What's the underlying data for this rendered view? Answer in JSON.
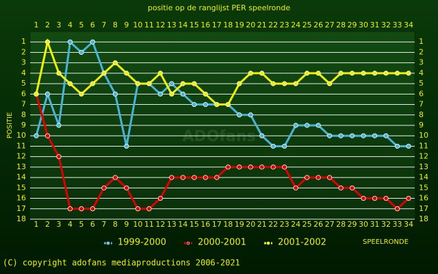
{
  "chart_data": {
    "type": "line",
    "title": "positie op de ranglijst PER speelronde",
    "y_label": "POSITIE",
    "x_label": "SPEELRONDE",
    "watermark": "ADOfans",
    "footer": "(C) copyright adofans mediaproductions 2006-2021",
    "x": [
      1,
      2,
      3,
      4,
      5,
      6,
      7,
      8,
      9,
      10,
      11,
      12,
      13,
      14,
      15,
      16,
      17,
      18,
      19,
      20,
      21,
      22,
      23,
      24,
      25,
      26,
      27,
      28,
      29,
      30,
      31,
      32,
      33,
      34
    ],
    "xlim": [
      1,
      34
    ],
    "ylim": [
      18,
      0
    ],
    "yticks": [
      1,
      2,
      3,
      4,
      5,
      6,
      7,
      8,
      9,
      10,
      11,
      12,
      13,
      14,
      15,
      16,
      17,
      18
    ],
    "grid": true,
    "series": [
      {
        "name": "1999-2000",
        "color": "#4ab4d8",
        "values": [
          10,
          6,
          9,
          1,
          2,
          1,
          4,
          6,
          11,
          5,
          5,
          6,
          5,
          6,
          7,
          7,
          7,
          7,
          8,
          8,
          10,
          11,
          11,
          9,
          9,
          9,
          10,
          10,
          10,
          10,
          10,
          10,
          11,
          11
        ]
      },
      {
        "name": "2000-2001",
        "color": "#e00000",
        "values": [
          6,
          10,
          12,
          17,
          17,
          17,
          15,
          14,
          15,
          17,
          17,
          16,
          14,
          14,
          14,
          14,
          14,
          13,
          13,
          13,
          13,
          13,
          13,
          15,
          14,
          14,
          14,
          15,
          15,
          16,
          16,
          16,
          17,
          16
        ]
      },
      {
        "name": "2001-2002",
        "color": "#f0f000",
        "values": [
          6,
          1,
          4,
          5,
          6,
          5,
          4,
          3,
          4,
          5,
          5,
          4,
          6,
          5,
          5,
          6,
          7,
          7,
          5,
          4,
          4,
          5,
          5,
          5,
          4,
          4,
          5,
          4,
          4,
          4,
          4,
          4,
          4,
          4
        ]
      }
    ]
  }
}
